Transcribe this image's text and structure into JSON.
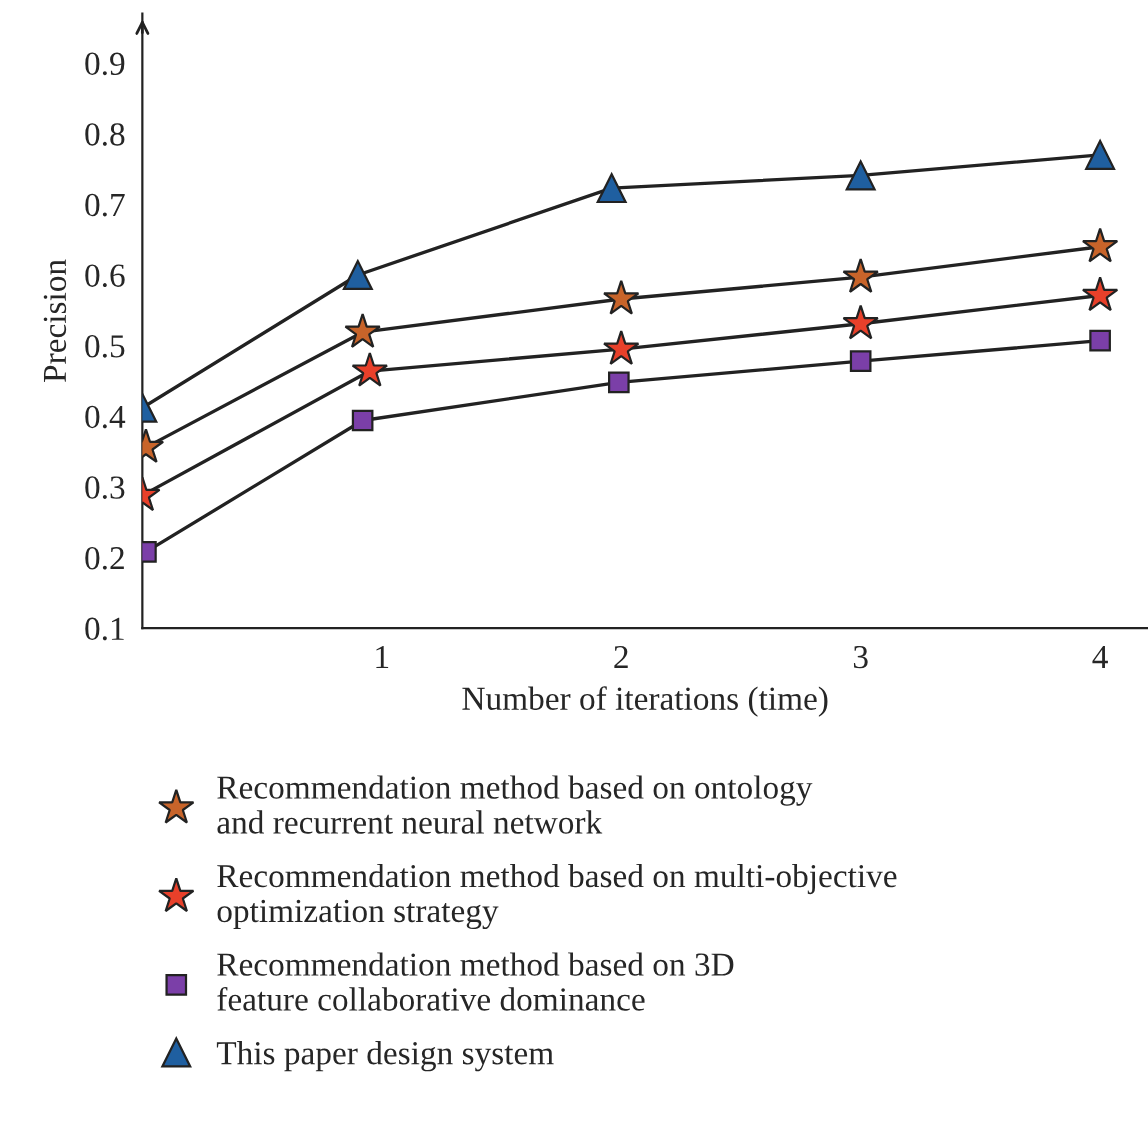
{
  "chart_data": {
    "type": "line",
    "xlabel": "Number of iterations (time)",
    "ylabel": "Precision",
    "xlim": [
      0,
      4.2
    ],
    "xticks": [
      1,
      2,
      3,
      4
    ],
    "ylim": [
      0.1,
      0.97
    ],
    "yticks": [
      0.1,
      0.2,
      0.3,
      0.4,
      0.5,
      0.6,
      0.7,
      0.8,
      0.9
    ],
    "grid": false,
    "legend": "bottom",
    "line_style": "solid",
    "series": [
      {
        "name": "Recommendation method based on ontology\nand recurrent neural network",
        "color": "#c8642a",
        "marker": "star",
        "x": [
          0.015,
          0.92,
          2.0,
          3.0,
          4.0
        ],
        "values": [
          0.356,
          0.519,
          0.566,
          0.597,
          0.64
        ]
      },
      {
        "name": "Recommendation method based on multi-objective\noptimization strategy",
        "color": "#e8402a",
        "marker": "star",
        "x": [
          0.0,
          0.95,
          2.0,
          3.0,
          4.0
        ],
        "values": [
          0.288,
          0.464,
          0.495,
          0.531,
          0.571
        ]
      },
      {
        "name": "Recommendation method based on 3D\nfeature collaborative dominance",
        "color": "#7b3fa8",
        "marker": "square",
        "x": [
          0.015,
          0.92,
          1.99,
          3.0,
          4.0
        ],
        "values": [
          0.208,
          0.394,
          0.448,
          0.478,
          0.507
        ]
      },
      {
        "name": "This paper design system",
        "color": "#1f5fa0",
        "marker": "triangle",
        "x": [
          0.0,
          0.9,
          1.96,
          3.0,
          4.0
        ],
        "values": [
          0.412,
          0.6,
          0.723,
          0.741,
          0.77
        ]
      }
    ]
  }
}
